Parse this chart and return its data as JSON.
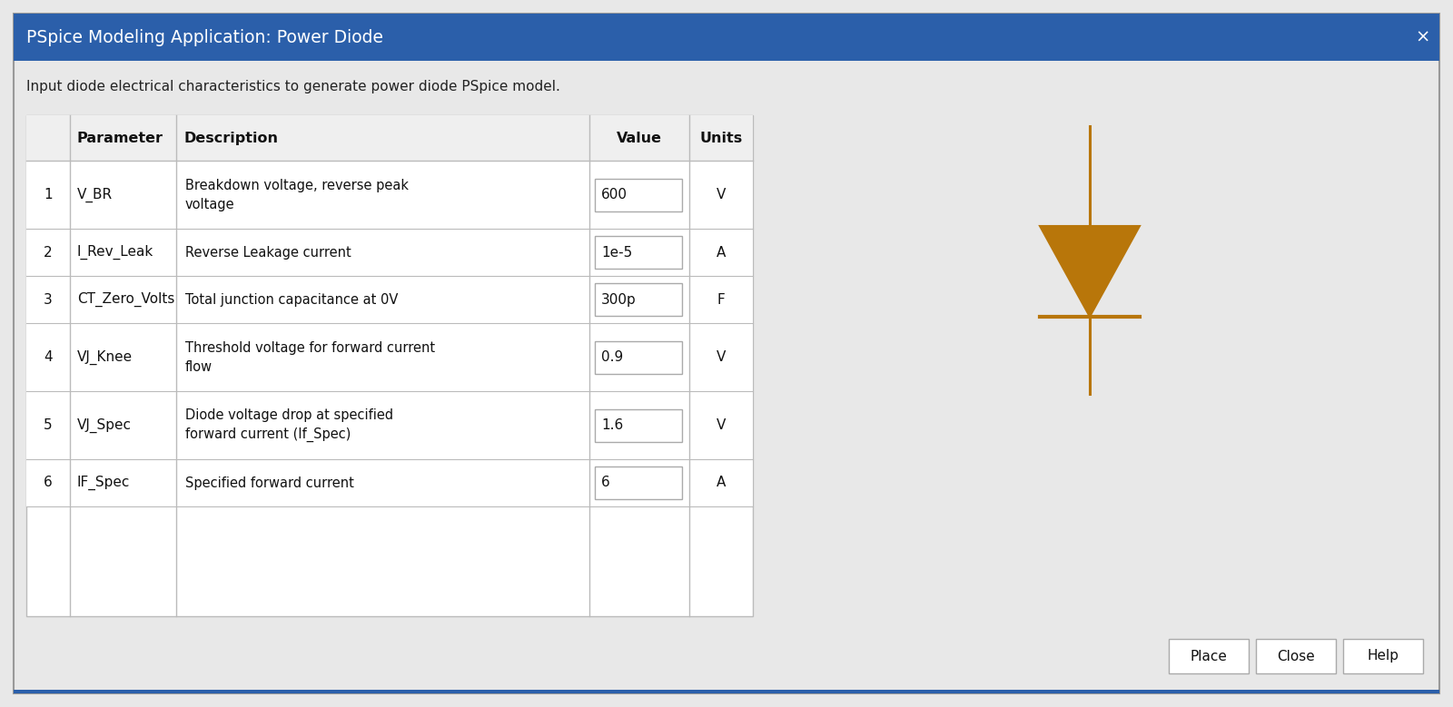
{
  "title": "PSpice Modeling Application: Power Diode",
  "subtitle": "Input diode electrical characteristics to generate power diode PSpice model.",
  "close_x": "×",
  "header_bg": "#2B5FAA",
  "header_text_color": "#FFFFFF",
  "body_bg": "#E8E8E8",
  "table_bg": "#FFFFFF",
  "table_header_bg": "#EFEFEF",
  "table_border": "#BBBBBB",
  "col_headers": [
    "",
    "Parameter",
    "Description",
    "Value",
    "Units"
  ],
  "rows": [
    {
      "num": "1",
      "param": "V_BR",
      "desc": "Breakdown voltage, reverse peak\nvoltage",
      "value": "600",
      "units": "V"
    },
    {
      "num": "2",
      "param": "I_Rev_Leak",
      "desc": "Reverse Leakage current",
      "value": "1e-5",
      "units": "A"
    },
    {
      "num": "3",
      "param": "CT_Zero_Volts",
      "desc": "Total junction capacitance at 0V",
      "value": "300p",
      "units": "F"
    },
    {
      "num": "4",
      "param": "VJ_Knee",
      "desc": "Threshold voltage for forward current\nflow",
      "value": "0.9",
      "units": "V"
    },
    {
      "num": "5",
      "param": "VJ_Spec",
      "desc": "Diode voltage drop at specified\nforward current (If_Spec)",
      "value": "1.6",
      "units": "V"
    },
    {
      "num": "6",
      "param": "IF_Spec",
      "desc": "Specified forward current",
      "value": "6",
      "units": "A"
    }
  ],
  "buttons": [
    "Place",
    "Close",
    "Help"
  ],
  "diode_color": "#B8760A",
  "fig_bg": "#E8E8E8"
}
